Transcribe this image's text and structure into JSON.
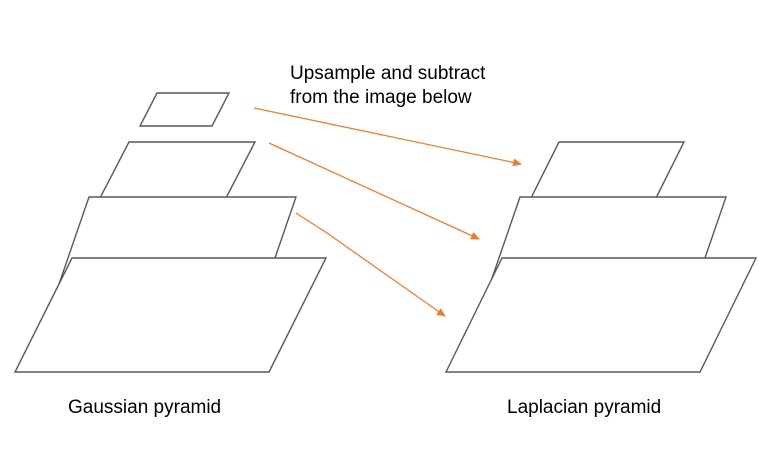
{
  "annotation": {
    "line1": "Upsample and subtract",
    "line2": "from the image below"
  },
  "gaussian": {
    "label": "Gaussian pyramid"
  },
  "laplacian": {
    "label": "Laplacian pyramid"
  },
  "colors": {
    "outline": "#595959",
    "arrow": "#ED7D31",
    "text": "#000000",
    "background": "#FFFFFF"
  }
}
